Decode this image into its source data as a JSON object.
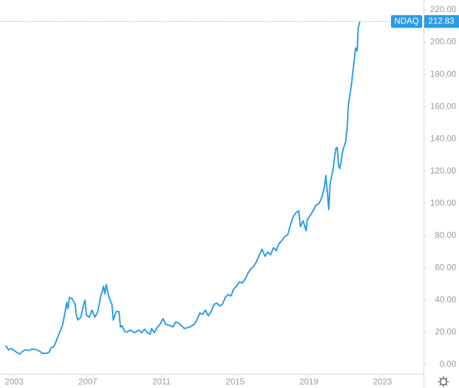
{
  "chart_data": {
    "type": "line",
    "x": [
      2002.54,
      2002.69,
      2002.85,
      2003.0,
      2003.15,
      2003.31,
      2003.46,
      2003.62,
      2003.77,
      2004.0,
      2004.23,
      2004.38,
      2004.54,
      2004.77,
      2004.92,
      2005.0,
      2005.15,
      2005.31,
      2005.46,
      2005.62,
      2005.77,
      2005.85,
      2005.92,
      2006.0,
      2006.15,
      2006.31,
      2006.38,
      2006.46,
      2006.62,
      2006.77,
      2006.85,
      2006.92,
      2007.08,
      2007.23,
      2007.38,
      2007.54,
      2007.69,
      2007.85,
      2007.92,
      2008.0,
      2008.15,
      2008.31,
      2008.38,
      2008.54,
      2008.69,
      2008.77,
      2008.85,
      2009.0,
      2009.15,
      2009.31,
      2009.54,
      2009.77,
      2009.92,
      2010.08,
      2010.23,
      2010.38,
      2010.46,
      2010.62,
      2010.77,
      2010.92,
      2011.08,
      2011.23,
      2011.46,
      2011.62,
      2011.77,
      2011.92,
      2012.08,
      2012.23,
      2012.54,
      2012.77,
      2012.92,
      2013.08,
      2013.23,
      2013.38,
      2013.54,
      2013.69,
      2013.85,
      2014.0,
      2014.15,
      2014.31,
      2014.46,
      2014.62,
      2014.77,
      2014.92,
      2015.08,
      2015.23,
      2015.38,
      2015.54,
      2015.69,
      2015.85,
      2016.0,
      2016.15,
      2016.31,
      2016.46,
      2016.62,
      2016.77,
      2016.92,
      2017.08,
      2017.23,
      2017.38,
      2017.54,
      2017.69,
      2017.85,
      2018.0,
      2018.15,
      2018.31,
      2018.46,
      2018.54,
      2018.69,
      2018.85,
      2018.92,
      2019.08,
      2019.23,
      2019.38,
      2019.54,
      2019.69,
      2019.85,
      2019.92,
      2020.0,
      2020.08,
      2020.15,
      2020.31,
      2020.46,
      2020.54,
      2020.62,
      2020.69,
      2020.85,
      2021.0,
      2021.08,
      2021.15,
      2021.31,
      2021.46,
      2021.54,
      2021.62,
      2021.69,
      2021.77
    ],
    "series": [
      {
        "name": "NDAQ",
        "color": "#2a9be8",
        "values": [
          11.9,
          9.2,
          10.1,
          8.8,
          7.5,
          6.6,
          8.3,
          9.2,
          8.8,
          9.7,
          9.2,
          8.3,
          7.0,
          7.0,
          7.9,
          10.5,
          11.0,
          15.4,
          19.8,
          24.2,
          32.9,
          38.6,
          34.7,
          41.7,
          40.8,
          37.3,
          30.3,
          27.7,
          29.4,
          37.3,
          40.0,
          30.7,
          29.4,
          33.8,
          29.4,
          32.9,
          41.7,
          48.7,
          43.9,
          49.6,
          41.7,
          37.3,
          27.7,
          32.9,
          32.9,
          23.3,
          24.2,
          20.6,
          20.2,
          21.5,
          19.8,
          21.5,
          19.8,
          22.0,
          19.8,
          18.9,
          22.4,
          19.8,
          23.3,
          25.0,
          28.5,
          25.0,
          24.2,
          23.3,
          26.4,
          25.9,
          24.2,
          22.4,
          23.3,
          25.0,
          27.7,
          32.1,
          31.2,
          33.8,
          30.3,
          32.9,
          37.3,
          38.2,
          36.5,
          37.3,
          41.7,
          43.5,
          42.6,
          47.0,
          48.7,
          51.4,
          50.5,
          53.1,
          56.7,
          59.3,
          61.0,
          63.7,
          68.1,
          71.6,
          67.2,
          69.8,
          68.1,
          72.5,
          70.7,
          75.1,
          76.9,
          79.5,
          80.4,
          86.5,
          91.8,
          94.4,
          95.3,
          85.6,
          89.2,
          83.0,
          90.0,
          92.7,
          95.3,
          98.8,
          99.7,
          103.2,
          110.2,
          117.3,
          107.6,
          96.2,
          112.0,
          120.8,
          133.9,
          134.8,
          122.9,
          121.6,
          133.1,
          138.3,
          147.1,
          161.2,
          173.5,
          188.4,
          196.3,
          194.6,
          209.5,
          212.83
        ]
      }
    ],
    "xlim": [
      2002.23,
      2025.23
    ],
    "xticks": [
      2003,
      2007,
      2011,
      2015,
      2019,
      2023
    ],
    "ylim": [
      0,
      220
    ],
    "yticks": [
      {
        "value": 0,
        "label": "0.00"
      },
      {
        "value": 20,
        "label": "20.00"
      },
      {
        "value": 40,
        "label": "40.00"
      },
      {
        "value": 60,
        "label": "60.00"
      },
      {
        "value": 80,
        "label": "80.00"
      },
      {
        "value": 100,
        "label": "100.00"
      },
      {
        "value": 120,
        "label": "120.00"
      },
      {
        "value": 140,
        "label": "140.00"
      },
      {
        "value": 160,
        "label": "160.00"
      },
      {
        "value": 180,
        "label": "180.00"
      },
      {
        "value": 200,
        "label": "200.00"
      },
      {
        "value": 220,
        "label": "220.00"
      }
    ]
  }
}
